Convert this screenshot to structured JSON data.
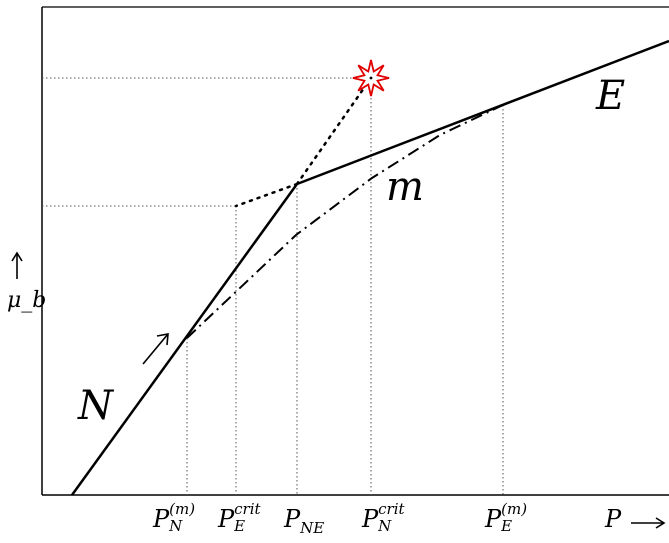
{
  "chart_data": {
    "type": "line",
    "title": "",
    "xlabel": "P",
    "ylabel": "μ_b",
    "grid": false,
    "series": [
      {
        "name": "N",
        "style": "solid"
      },
      {
        "name": "E",
        "style": "solid"
      },
      {
        "name": "m",
        "style": "dash-dot"
      }
    ],
    "x_ticks": [
      {
        "base": "P",
        "sub": "N",
        "sup": "(m)"
      },
      {
        "base": "P",
        "sub": "E",
        "sup": "crit"
      },
      {
        "base": "P",
        "sub": "NE",
        "sup": ""
      },
      {
        "base": "P",
        "sub": "N",
        "sup": "crit"
      },
      {
        "base": "P",
        "sub": "E",
        "sup": "(m)"
      }
    ],
    "annotations": {
      "arrow": "↗",
      "star_color": "#e00000"
    }
  }
}
